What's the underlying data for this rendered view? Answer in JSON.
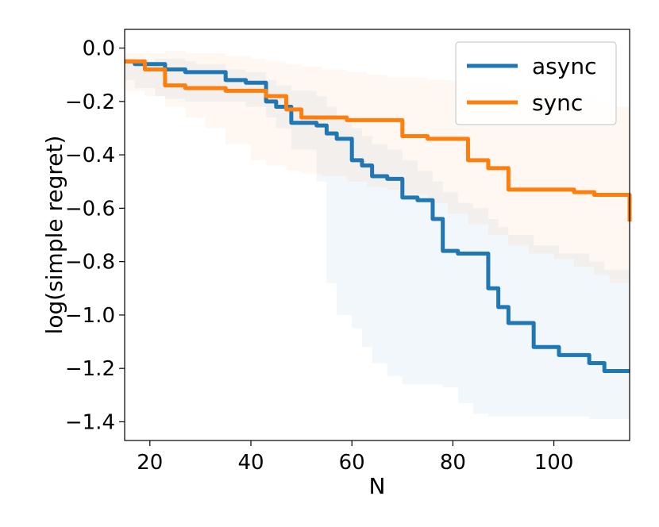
{
  "chart_data": {
    "type": "line",
    "xlabel": "N",
    "ylabel": "log(simple regret)",
    "xlim": [
      15,
      115
    ],
    "ylim": [
      -1.47,
      0.07
    ],
    "xticks": [
      20,
      40,
      60,
      80,
      100
    ],
    "yticks": [
      0.0,
      -0.2,
      -0.4,
      -0.6,
      -0.8,
      -1.0,
      -1.2,
      -1.4
    ],
    "xtick_labels": [
      "20",
      "40",
      "60",
      "80",
      "100"
    ],
    "ytick_labels": [
      "0.0",
      "−0.2",
      "−0.4",
      "−0.6",
      "−0.8",
      "−1.0",
      "−1.2",
      "−1.4"
    ],
    "grid": false,
    "legend": "top-right",
    "series": [
      {
        "name": "async",
        "color": "#1f77b4",
        "x": [
          15,
          17,
          21,
          23,
          27,
          29,
          35,
          39,
          43,
          45,
          48,
          53,
          55,
          57,
          60,
          62,
          64,
          67,
          70,
          73,
          76,
          78,
          81,
          84,
          87,
          89,
          91,
          96,
          101,
          107,
          110,
          115
        ],
        "y": [
          -0.05,
          -0.06,
          -0.06,
          -0.08,
          -0.09,
          -0.09,
          -0.12,
          -0.13,
          -0.2,
          -0.22,
          -0.28,
          -0.29,
          -0.32,
          -0.34,
          -0.42,
          -0.44,
          -0.48,
          -0.49,
          -0.56,
          -0.57,
          -0.64,
          -0.76,
          -0.77,
          -0.77,
          -0.9,
          -0.97,
          -1.03,
          -1.12,
          -1.15,
          -1.18,
          -1.21,
          -1.21
        ],
        "band_upper": [
          -0.05,
          -0.05,
          -0.04,
          -0.04,
          -0.05,
          -0.06,
          -0.08,
          -0.09,
          -0.12,
          -0.14,
          -0.16,
          -0.18,
          -0.22,
          -0.26,
          -0.3,
          -0.33,
          -0.36,
          -0.38,
          -0.42,
          -0.46,
          -0.5,
          -0.54,
          -0.58,
          -0.6,
          -0.64,
          -0.67,
          -0.7,
          -0.74,
          -0.77,
          -0.8,
          -0.83,
          -0.88
        ],
        "band_lower": [
          -0.12,
          -0.15,
          -0.18,
          -0.19,
          -0.2,
          -0.2,
          -0.2,
          -0.22,
          -0.26,
          -0.3,
          -0.38,
          -0.5,
          -0.88,
          -1.0,
          -1.05,
          -1.12,
          -1.18,
          -1.23,
          -1.26,
          -1.26,
          -1.26,
          -1.27,
          -1.33,
          -1.37,
          -1.38,
          -1.38,
          -1.38,
          -1.38,
          -1.38,
          -1.39,
          -1.39,
          -1.39
        ]
      },
      {
        "name": "sync",
        "color": "#ff7f0e",
        "x": [
          15,
          19,
          23,
          27,
          31,
          35,
          40,
          43,
          47,
          50,
          54,
          59,
          63,
          67,
          70,
          75,
          79,
          83,
          87,
          91,
          95,
          100,
          104,
          108,
          111,
          115
        ],
        "y": [
          -0.05,
          -0.08,
          -0.14,
          -0.15,
          -0.15,
          -0.16,
          -0.16,
          -0.18,
          -0.23,
          -0.26,
          -0.26,
          -0.27,
          -0.27,
          -0.27,
          -0.33,
          -0.34,
          -0.34,
          -0.42,
          -0.45,
          -0.53,
          -0.53,
          -0.53,
          -0.54,
          -0.55,
          -0.55,
          -0.65
        ],
        "band_upper": [
          -0.02,
          -0.02,
          -0.01,
          -0.02,
          -0.02,
          -0.03,
          -0.04,
          -0.05,
          -0.06,
          -0.07,
          -0.08,
          -0.09,
          -0.1,
          -0.11,
          -0.11,
          -0.12,
          -0.12,
          -0.13,
          -0.13,
          -0.15,
          -0.16,
          -0.17,
          -0.18,
          -0.2,
          -0.22,
          -0.25
        ],
        "band_lower": [
          -0.16,
          -0.18,
          -0.22,
          -0.26,
          -0.3,
          -0.36,
          -0.42,
          -0.44,
          -0.46,
          -0.47,
          -0.48,
          -0.5,
          -0.52,
          -0.53,
          -0.55,
          -0.58,
          -0.62,
          -0.66,
          -0.7,
          -0.74,
          -0.77,
          -0.79,
          -0.82,
          -0.85,
          -0.88,
          -0.93
        ]
      }
    ]
  }
}
